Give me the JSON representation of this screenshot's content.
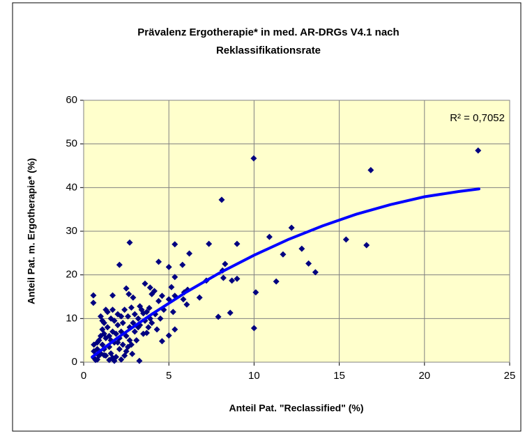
{
  "chart_data": {
    "type": "scatter",
    "title": [
      "Prävalenz Ergotherapie* in med. AR-DRGs V4.1 nach",
      "Reklassifikationsrate"
    ],
    "x_label": "Anteil Pat. \"Reclassified\" (%)",
    "y_label": "Anteil Pat. m. Ergotherapie* (%)",
    "annotation": "R² = 0,7052",
    "color": "#000080",
    "x": [
      23.15,
      16.85,
      9.98,
      8.1,
      12.2,
      10.9,
      15.4,
      16.6,
      12.8,
      13.2,
      13.6,
      11.7,
      11.3,
      10.1,
      10,
      8.6,
      7.9,
      9,
      8.7,
      8.3,
      8.15,
      8.2,
      9,
      7.35,
      7.2,
      6.8,
      6.2,
      5.35,
      5.8,
      6.1,
      5.9,
      6.05,
      5.85,
      5.35,
      5.35,
      5.15,
      5,
      4.4,
      5,
      4.6,
      4.4,
      4.6,
      5,
      5.35,
      5.25,
      2.7,
      2.1,
      3.6,
      2.9,
      2.65,
      2.5,
      1.7,
      0.57,
      0.57,
      3.27,
      3.85,
      4,
      4.15,
      3.9,
      3.3,
      3.5,
      3.2,
      3.7,
      2.8,
      2.85,
      2.2,
      1.7,
      1.2,
      0.8,
      0.6,
      0.6,
      0.6,
      0.7,
      0.8,
      0.9,
      1.0,
      1.0,
      1.1,
      1.1,
      1.2,
      1.2,
      1.3,
      1.3,
      1.4,
      1.4,
      1.5,
      1.5,
      1.6,
      1.6,
      1.7,
      1.7,
      1.8,
      1.8,
      1.9,
      1.9,
      2.0,
      2.0,
      2.1,
      2.1,
      2.2,
      2.2,
      2.3,
      2.3,
      2.4,
      2.5,
      2.5,
      2.6,
      2.7,
      2.7,
      2.8,
      2.9,
      3.0,
      3.0,
      3.1,
      3.2,
      3.3,
      3.4,
      3.5,
      3.6,
      3.7,
      3.8,
      3.9,
      4.0,
      4.2,
      4.3,
      4.5,
      4.7,
      1.0,
      1.2,
      0.9,
      1.5,
      1.8,
      2.4,
      1.1,
      1.3,
      0.8,
      1.6,
      2.0,
      2.6
    ],
    "values": [
      48.5,
      44,
      46.7,
      37.2,
      30.8,
      28.7,
      28.1,
      26.8,
      26,
      22.6,
      20.6,
      24.7,
      18.5,
      16,
      7.8,
      11.3,
      10.4,
      19.1,
      18.7,
      22.5,
      21,
      19.3,
      27.1,
      27.1,
      18.7,
      14.8,
      24.9,
      27,
      22.3,
      16.6,
      16,
      13.2,
      14.4,
      15.2,
      19.5,
      17.2,
      21.8,
      23,
      14.4,
      15.2,
      14,
      4.8,
      6.1,
      7.5,
      11.5,
      27.4,
      22.3,
      18,
      14.8,
      15.6,
      16.9,
      15.3,
      15.3,
      13.6,
      0.3,
      12.4,
      15.6,
      16.3,
      17.1,
      12.8,
      11.2,
      8,
      6.7,
      4,
      1.9,
      0.6,
      1,
      1.6,
      0.6,
      1,
      2.5,
      4,
      0.5,
      3,
      5,
      2,
      6,
      4,
      7.5,
      3,
      9,
      5.5,
      1.5,
      8,
      11.5,
      6,
      3.5,
      10,
      2,
      7,
      12,
      4.5,
      9.5,
      6.5,
      1.2,
      8.5,
      11,
      3,
      5.5,
      10.5,
      7,
      4,
      9,
      12,
      6,
      2.5,
      10.5,
      8,
      5,
      12.5,
      9,
      7,
      11,
      5,
      10,
      8.5,
      12,
      6.5,
      9.5,
      11.5,
      8,
      10,
      9,
      11,
      7.5,
      10,
      12,
      10.5,
      6.5,
      1.5,
      0.5,
      0.3,
      1.5,
      9.5,
      12,
      4.5,
      5,
      4.5,
      3.5
    ],
    "trendline": {
      "color": "#0000ff",
      "x": [
        0.5,
        2,
        4,
        6,
        8,
        10,
        12,
        14,
        16,
        18,
        20,
        22,
        23.2
      ],
      "values": [
        1.2,
        5.6,
        11,
        16,
        20.5,
        24.5,
        28.1,
        31.2,
        33.9,
        36.1,
        37.9,
        39.1,
        39.7
      ]
    },
    "xlim": [
      0,
      25
    ],
    "xticks": [
      0,
      5,
      10,
      15,
      20,
      25
    ],
    "ylim": [
      0,
      60
    ],
    "yticks": [
      0,
      10,
      20,
      30,
      40,
      50,
      60
    ],
    "grid": true,
    "plot_background": "#ffffcc"
  }
}
